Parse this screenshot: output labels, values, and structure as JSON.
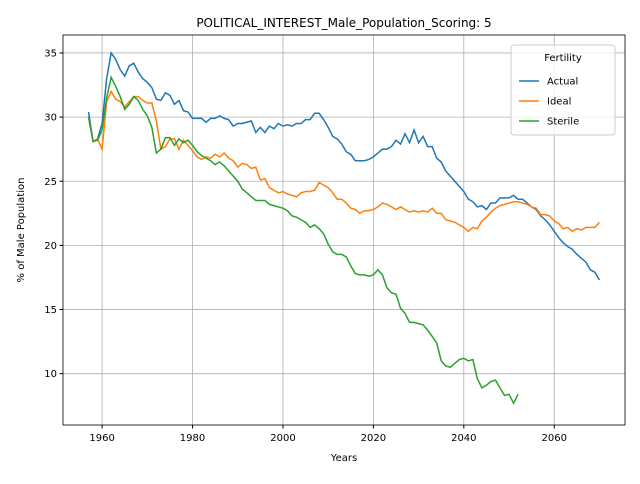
{
  "chart_data": {
    "type": "line",
    "title": "POLITICAL_INTEREST_Male_Population_Scoring: 5",
    "x_label": "Years",
    "y_label": "% of Male Population",
    "legend_title": "Fertility",
    "legend_position": "upper right",
    "grid": true,
    "x": [
      1957,
      1958,
      1959,
      1960,
      1961,
      1962,
      1963,
      1964,
      1965,
      1966,
      1967,
      1968,
      1969,
      1970,
      1971,
      1972,
      1973,
      1974,
      1975,
      1976,
      1977,
      1978,
      1979,
      1980,
      1981,
      1982,
      1983,
      1984,
      1985,
      1986,
      1987,
      1988,
      1989,
      1990,
      1991,
      1992,
      1993,
      1994,
      1995,
      1996,
      1997,
      1998,
      1999,
      2000,
      2001,
      2002,
      2003,
      2004,
      2005,
      2006,
      2007,
      2008,
      2009,
      2010,
      2011,
      2012,
      2013,
      2014,
      2015,
      2016,
      2017,
      2018,
      2019,
      2020,
      2021,
      2022,
      2023,
      2024,
      2025,
      2026,
      2027,
      2028,
      2029,
      2030,
      2031,
      2032,
      2033,
      2034,
      2035,
      2036,
      2037,
      2038,
      2039,
      2040,
      2041,
      2042,
      2043,
      2044,
      2045,
      2046,
      2047,
      2048,
      2049,
      2050,
      2051,
      2052,
      2053,
      2054,
      2055,
      2056,
      2057,
      2058,
      2059,
      2060,
      2061,
      2062,
      2063,
      2064,
      2065,
      2066,
      2067,
      2068,
      2069,
      2070
    ],
    "series": [
      {
        "name": "Actual",
        "color": "#1f77b4",
        "values": [
          30.4,
          28.1,
          28.3,
          29.5,
          33.0,
          35.0,
          34.5,
          33.7,
          33.2,
          34.0,
          34.2,
          33.5,
          33.0,
          32.7,
          32.3,
          31.4,
          31.3,
          31.9,
          31.7,
          31.0,
          31.3,
          30.5,
          30.4,
          29.9,
          29.9,
          29.9,
          29.6,
          29.9,
          29.9,
          30.1,
          29.9,
          29.8,
          29.3,
          29.5,
          29.5,
          29.6,
          29.7,
          28.8,
          29.2,
          28.8,
          29.3,
          29.1,
          29.5,
          29.3,
          29.4,
          29.3,
          29.5,
          29.5,
          29.8,
          29.8,
          30.3,
          30.3,
          29.8,
          29.2,
          28.5,
          28.3,
          27.9,
          27.3,
          27.1,
          26.6,
          26.6,
          26.6,
          26.7,
          26.9,
          27.2,
          27.5,
          27.5,
          27.7,
          28.2,
          27.9,
          28.7,
          28.0,
          29.0,
          28.0,
          28.5,
          27.7,
          27.7,
          26.8,
          26.5,
          25.8,
          25.4,
          25.0,
          24.6,
          24.2,
          23.6,
          23.4,
          23.0,
          23.1,
          22.8,
          23.3,
          23.3,
          23.7,
          23.7,
          23.7,
          23.9,
          23.6,
          23.6,
          23.3,
          23.0,
          22.8,
          22.3,
          22.0,
          21.6,
          21.1,
          20.6,
          20.2,
          19.9,
          19.7,
          19.3,
          19.0,
          18.7,
          18.1,
          17.9,
          17.3
        ]
      },
      {
        "name": "Ideal",
        "color": "#ff7f0e",
        "values": [
          30.0,
          28.1,
          28.3,
          27.5,
          31.2,
          32.0,
          31.4,
          31.2,
          30.8,
          31.2,
          31.6,
          31.6,
          31.3,
          31.1,
          31.1,
          29.7,
          27.5,
          27.7,
          28.3,
          28.3,
          27.5,
          28.2,
          27.8,
          27.4,
          26.9,
          26.7,
          26.9,
          26.8,
          27.1,
          26.9,
          27.2,
          26.8,
          26.6,
          26.1,
          26.4,
          26.3,
          26.0,
          26.1,
          25.1,
          25.2,
          24.5,
          24.3,
          24.1,
          24.2,
          24.0,
          23.9,
          23.8,
          24.1,
          24.2,
          24.2,
          24.3,
          24.9,
          24.7,
          24.5,
          24.1,
          23.6,
          23.6,
          23.3,
          22.9,
          22.8,
          22.5,
          22.7,
          22.7,
          22.8,
          23.0,
          23.3,
          23.2,
          23.0,
          22.8,
          23.0,
          22.8,
          22.6,
          22.7,
          22.6,
          22.7,
          22.6,
          22.9,
          22.5,
          22.5,
          22.0,
          21.9,
          21.8,
          21.6,
          21.4,
          21.1,
          21.4,
          21.3,
          21.9,
          22.2,
          22.6,
          22.9,
          23.1,
          23.2,
          23.3,
          23.4,
          23.4,
          23.3,
          23.2,
          23.0,
          22.9,
          22.4,
          22.4,
          22.3,
          21.9,
          21.7,
          21.3,
          21.4,
          21.1,
          21.3,
          21.2,
          21.4,
          21.4,
          21.4,
          21.8
        ]
      },
      {
        "name": "Sterile",
        "color": "#2ca02c",
        "values": [
          30.0,
          28.1,
          28.2,
          29.0,
          31.5,
          33.1,
          32.4,
          31.6,
          30.6,
          31.0,
          31.6,
          31.3,
          30.6,
          30.1,
          29.2,
          27.2,
          27.5,
          28.4,
          28.4,
          27.8,
          28.3,
          28.0,
          28.2,
          27.8,
          27.3,
          27.0,
          26.8,
          26.6,
          26.3,
          26.5,
          26.2,
          25.8,
          25.4,
          25.0,
          24.4,
          24.1,
          23.8,
          23.5,
          23.5,
          23.5,
          23.2,
          23.1,
          23.0,
          22.9,
          22.7,
          22.3,
          22.2,
          22.0,
          21.8,
          21.4,
          21.6,
          21.3,
          20.9,
          20.1,
          19.5,
          19.3,
          19.3,
          19.1,
          18.4,
          17.8,
          17.7,
          17.7,
          17.6,
          17.7,
          18.1,
          17.7,
          16.7,
          16.3,
          16.2,
          15.1,
          14.7,
          14.0,
          14.0,
          13.9,
          13.8,
          13.4,
          12.9,
          12.4,
          11.0,
          10.6,
          10.5,
          10.8,
          11.1,
          11.2,
          11.0,
          11.1,
          9.6,
          8.9,
          9.1,
          9.4,
          9.5,
          8.9,
          8.3,
          8.4,
          7.7,
          8.4,
          null,
          null,
          null,
          null,
          null,
          null,
          null,
          null,
          null,
          null,
          null,
          null,
          null,
          null,
          null,
          null,
          null,
          null
        ]
      }
    ],
    "xlim": [
      1951.35,
      2075.65
    ],
    "ylim": [
      6.0,
      36.4
    ],
    "xticks": [
      1960,
      1980,
      2000,
      2020,
      2040,
      2060
    ],
    "yticks": [
      10,
      15,
      20,
      25,
      30,
      35
    ]
  }
}
